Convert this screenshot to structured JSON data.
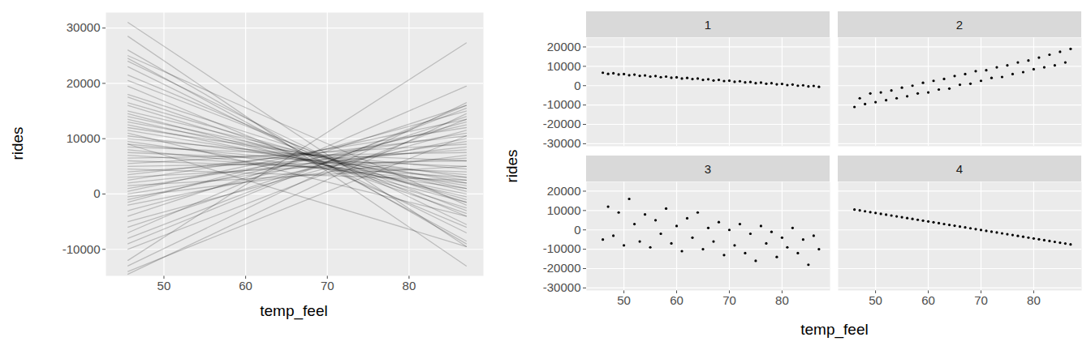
{
  "chart_data": [
    {
      "type": "line",
      "x_label": "temp_feel",
      "y_label": "rides",
      "color": "#000000",
      "grid": true,
      "xlim": [
        42.9,
        89.1
      ],
      "ylim": [
        -14800,
        32800
      ],
      "xticks": [
        50,
        60,
        70,
        80
      ],
      "yticks": [
        -10000,
        0,
        10000,
        20000,
        30000
      ],
      "x": [
        45.6,
        87
      ],
      "series": [
        {
          "values": [
            31000,
            -9500
          ]
        },
        {
          "values": [
            28500,
            -13000
          ]
        },
        {
          "values": [
            26000,
            -9000
          ]
        },
        {
          "values": [
            24500,
            -8500
          ]
        },
        {
          "values": [
            24000,
            -5500
          ]
        },
        {
          "values": [
            23000,
            -7000
          ]
        },
        {
          "values": [
            21500,
            -4000
          ]
        },
        {
          "values": [
            20500,
            -3000
          ]
        },
        {
          "values": [
            19500,
            -6000
          ]
        },
        {
          "values": [
            18000,
            -1500
          ]
        },
        {
          "values": [
            17500,
            -3500
          ]
        },
        {
          "values": [
            16500,
            -1000
          ]
        },
        {
          "values": [
            16000,
            -2500
          ]
        },
        {
          "values": [
            15000,
            500
          ]
        },
        {
          "values": [
            14500,
            -1500
          ]
        },
        {
          "values": [
            14000,
            1000
          ]
        },
        {
          "values": [
            13500,
            -500
          ]
        },
        {
          "values": [
            13000,
            2000
          ]
        },
        {
          "values": [
            12500,
            0
          ]
        },
        {
          "values": [
            12000,
            3000
          ]
        },
        {
          "values": [
            11500,
            1500
          ]
        },
        {
          "values": [
            11000,
            -4000
          ]
        },
        {
          "values": [
            10500,
            2500
          ]
        },
        {
          "values": [
            10000,
            4500
          ]
        },
        {
          "values": [
            9500,
            1000
          ]
        },
        {
          "values": [
            9000,
            3500
          ]
        },
        {
          "values": [
            8500,
            6000
          ]
        },
        {
          "values": [
            8000,
            2000
          ]
        },
        {
          "values": [
            7500,
            5000
          ]
        },
        {
          "values": [
            7000,
            3000
          ]
        },
        {
          "values": [
            6500,
            7500
          ]
        },
        {
          "values": [
            6000,
            4000
          ]
        },
        {
          "values": [
            5500,
            9000
          ]
        },
        {
          "values": [
            5000,
            6000
          ]
        },
        {
          "values": [
            4500,
            2500
          ]
        },
        {
          "values": [
            4000,
            8000
          ]
        },
        {
          "values": [
            3500,
            10500
          ]
        },
        {
          "values": [
            3000,
            6500
          ]
        },
        {
          "values": [
            2500,
            12000
          ]
        },
        {
          "values": [
            2000,
            8500
          ]
        },
        {
          "values": [
            1500,
            5000
          ]
        },
        {
          "values": [
            1000,
            11000
          ]
        },
        {
          "values": [
            500,
            13500
          ]
        },
        {
          "values": [
            0,
            9500
          ]
        },
        {
          "values": [
            -500,
            7000
          ]
        },
        {
          "values": [
            -1000,
            12500
          ]
        },
        {
          "values": [
            -1500,
            15000
          ]
        },
        {
          "values": [
            -2000,
            10000
          ]
        },
        {
          "values": [
            -3000,
            13000
          ]
        },
        {
          "values": [
            -4000,
            16000
          ]
        },
        {
          "values": [
            -5000,
            11500
          ]
        },
        {
          "values": [
            -6000,
            14000
          ]
        },
        {
          "values": [
            -7000,
            19500
          ]
        },
        {
          "values": [
            -8000,
            15500
          ]
        },
        {
          "values": [
            -9000,
            16000
          ]
        },
        {
          "values": [
            -10000,
            13500
          ]
        },
        {
          "values": [
            -12000,
            27300
          ]
        },
        {
          "values": [
            -13000,
            16500
          ]
        },
        {
          "values": [
            -14000,
            10500
          ]
        },
        {
          "values": [
            -14500,
            14500
          ]
        },
        {
          "values": [
            9000,
            -9500
          ]
        },
        {
          "values": [
            25000,
            -2000
          ]
        }
      ]
    },
    {
      "type": "scatter",
      "x_label": "temp_feel",
      "y_label": "rides",
      "color": "#000000",
      "grid": true,
      "xlim": [
        42.9,
        89.1
      ],
      "ylim": [
        -31300,
        24800
      ],
      "xticks": [
        50,
        60,
        70,
        80
      ],
      "yticks": [
        -30000,
        -20000,
        -10000,
        0,
        10000,
        20000
      ],
      "facets": [
        {
          "label": "1",
          "x": [
            46,
            47,
            48,
            49,
            50,
            51,
            52,
            53,
            54,
            55,
            56,
            57,
            58,
            59,
            60,
            61,
            62,
            63,
            64,
            65,
            66,
            67,
            68,
            69,
            70,
            71,
            72,
            73,
            74,
            75,
            76,
            77,
            78,
            79,
            80,
            81,
            82,
            83,
            84,
            85,
            86,
            87
          ],
          "values": [
            6700,
            6100,
            6400,
            5800,
            6000,
            5400,
            5700,
            5100,
            5300,
            4700,
            5000,
            4400,
            4700,
            4100,
            4300,
            3700,
            4000,
            3400,
            3700,
            3000,
            3300,
            2700,
            3000,
            2400,
            2600,
            2000,
            2300,
            1700,
            1900,
            1300,
            1600,
            1000,
            1300,
            700,
            900,
            300,
            600,
            0,
            200,
            -400,
            -100,
            -600
          ]
        },
        {
          "label": "2",
          "x": [
            46,
            47,
            48,
            49,
            50,
            51,
            52,
            53,
            54,
            55,
            56,
            57,
            58,
            59,
            60,
            61,
            62,
            63,
            64,
            65,
            66,
            67,
            68,
            69,
            70,
            71,
            72,
            73,
            74,
            75,
            76,
            77,
            78,
            79,
            80,
            81,
            82,
            83,
            84,
            85,
            86,
            87
          ],
          "values": [
            -11000,
            -6500,
            -9500,
            -4000,
            -8500,
            -3500,
            -7500,
            -2500,
            -6500,
            -1000,
            -5500,
            0,
            -4000,
            1500,
            -3500,
            2500,
            -2000,
            3500,
            -1500,
            5000,
            500,
            6000,
            1000,
            7500,
            2500,
            8000,
            4000,
            9500,
            4500,
            10500,
            6000,
            12000,
            7000,
            13000,
            8500,
            14500,
            9500,
            16000,
            10500,
            17500,
            12000,
            19000
          ]
        },
        {
          "label": "3",
          "x": [
            46,
            47,
            48,
            49,
            50,
            51,
            52,
            53,
            54,
            55,
            56,
            57,
            58,
            59,
            60,
            61,
            62,
            63,
            64,
            65,
            66,
            67,
            68,
            69,
            70,
            71,
            72,
            73,
            74,
            75,
            76,
            77,
            78,
            79,
            80,
            81,
            82,
            83,
            84,
            85,
            86,
            87
          ],
          "values": [
            -5000,
            12000,
            -3000,
            9000,
            -8000,
            16000,
            3000,
            -6000,
            8000,
            -9000,
            5000,
            -2000,
            11000,
            -7000,
            2000,
            -11000,
            6000,
            -4000,
            9000,
            -10000,
            1000,
            -6000,
            4000,
            -13000,
            0,
            -8000,
            3000,
            -12000,
            -2000,
            -16000,
            2000,
            -7000,
            -1000,
            -14000,
            -4000,
            -9000,
            1000,
            -12000,
            -5000,
            -18000,
            -3000,
            -10000
          ]
        },
        {
          "label": "4",
          "x": [
            46,
            47,
            48,
            49,
            50,
            51,
            52,
            53,
            54,
            55,
            56,
            57,
            58,
            59,
            60,
            61,
            62,
            63,
            64,
            65,
            66,
            67,
            68,
            69,
            70,
            71,
            72,
            73,
            74,
            75,
            76,
            77,
            78,
            79,
            80,
            81,
            82,
            83,
            84,
            85,
            86,
            87
          ],
          "values": [
            10500,
            10060,
            9620,
            9180,
            8740,
            8300,
            7870,
            7430,
            6990,
            6550,
            6110,
            5670,
            5230,
            4790,
            4350,
            3920,
            3480,
            3040,
            2600,
            2160,
            1720,
            1280,
            840,
            400,
            -40,
            -480,
            -910,
            -1350,
            -1790,
            -2230,
            -2670,
            -3110,
            -3550,
            -3990,
            -4430,
            -4870,
            -5300,
            -5740,
            -6180,
            -6620,
            -7060,
            -7500
          ]
        }
      ]
    }
  ]
}
